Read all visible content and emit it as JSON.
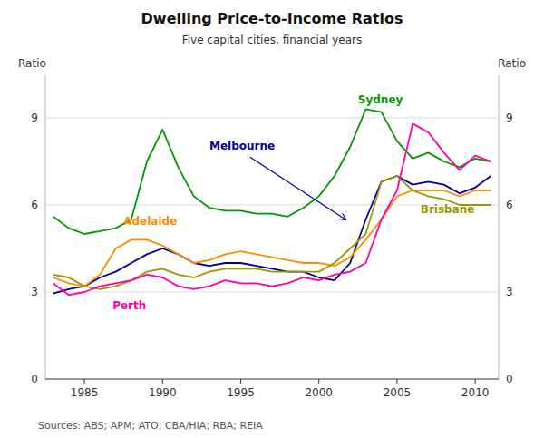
{
  "chart_data": {
    "type": "line",
    "title": "Dwelling Price-to-Income Ratios",
    "subtitle": "Five capital cities, financial years",
    "y_label": "Ratio",
    "y2_label": "Ratio",
    "source": "Sources: ABS; APM; ATO; CBA/HIA; RBA; REIA",
    "x": [
      1983,
      1984,
      1985,
      1986,
      1987,
      1988,
      1989,
      1990,
      1991,
      1992,
      1993,
      1994,
      1995,
      1996,
      1997,
      1998,
      1999,
      2000,
      2001,
      2002,
      2003,
      2004,
      2005,
      2006,
      2007,
      2008,
      2009,
      2010,
      2011
    ],
    "xlim": [
      1982.5,
      2011.5
    ],
    "xticks": [
      1985,
      1990,
      1995,
      2000,
      2005,
      2010
    ],
    "ylim": [
      0,
      10.5
    ],
    "yticks": [
      0,
      3,
      6,
      9
    ],
    "y2lim": [
      0,
      10.5
    ],
    "y2ticks": [
      0,
      3,
      6,
      9
    ],
    "grid": true,
    "series": [
      {
        "name": "Sydney",
        "color": "#009900",
        "values": [
          5.6,
          5.2,
          5.0,
          5.1,
          5.2,
          5.5,
          7.5,
          8.6,
          7.3,
          6.3,
          5.9,
          5.8,
          5.8,
          5.7,
          5.7,
          5.6,
          5.9,
          6.3,
          7.0,
          8.0,
          9.3,
          9.2,
          8.2,
          7.6,
          7.8,
          7.5,
          7.3,
          7.6,
          7.5
        ]
      },
      {
        "name": "Melbourne",
        "color": "#000099",
        "values": [
          2.95,
          3.1,
          3.2,
          3.5,
          3.7,
          4.0,
          4.3,
          4.5,
          4.3,
          4.0,
          3.9,
          4.0,
          4.0,
          3.9,
          3.8,
          3.7,
          3.7,
          3.5,
          3.4,
          4.0,
          5.5,
          6.8,
          7.0,
          6.7,
          6.8,
          6.7,
          6.4,
          6.6,
          7.0
        ]
      },
      {
        "name": "Adelaide",
        "color": "#FF8C00",
        "values": [
          3.5,
          3.3,
          3.2,
          3.6,
          4.5,
          4.8,
          4.8,
          4.6,
          4.3,
          4.0,
          4.1,
          4.3,
          4.4,
          4.3,
          4.2,
          4.1,
          4.0,
          4.0,
          3.9,
          4.2,
          4.8,
          5.5,
          6.3,
          6.5,
          6.5,
          6.5,
          6.3,
          6.5,
          6.5
        ]
      },
      {
        "name": "Brisbane",
        "color": "#999900",
        "values": [
          3.6,
          3.5,
          3.2,
          3.1,
          3.2,
          3.4,
          3.7,
          3.8,
          3.6,
          3.5,
          3.7,
          3.8,
          3.8,
          3.8,
          3.7,
          3.7,
          3.7,
          3.7,
          4.0,
          4.5,
          5.0,
          6.8,
          7.0,
          6.5,
          6.3,
          6.2,
          6.0,
          6.0,
          6.0
        ]
      },
      {
        "name": "Perth",
        "color": "#FF00AA",
        "values": [
          3.3,
          2.9,
          3.0,
          3.2,
          3.3,
          3.4,
          3.6,
          3.5,
          3.2,
          3.1,
          3.2,
          3.4,
          3.3,
          3.3,
          3.2,
          3.3,
          3.5,
          3.4,
          3.6,
          3.7,
          4.0,
          5.5,
          6.5,
          8.8,
          8.5,
          7.8,
          7.2,
          7.7,
          7.5
        ]
      }
    ],
    "annotations": [
      {
        "text": "Sydney",
        "x": 2002.5,
        "y": 9.45,
        "color": "#009900"
      },
      {
        "text": "Melbourne",
        "x": 1993.0,
        "y": 7.85,
        "color": "#000099",
        "arrow": {
          "x": 1995.6,
          "y": 7.65,
          "x_end": 2001.7,
          "y_end": 5.5
        }
      },
      {
        "text": "Adelaide",
        "x": 1987.5,
        "y": 5.25,
        "color": "#FF8C00"
      },
      {
        "text": "Brisbane",
        "x": 2006.5,
        "y": 5.65,
        "color": "#999900"
      },
      {
        "text": "Perth",
        "x": 1986.8,
        "y": 2.35,
        "color": "#FF00AA"
      }
    ]
  }
}
